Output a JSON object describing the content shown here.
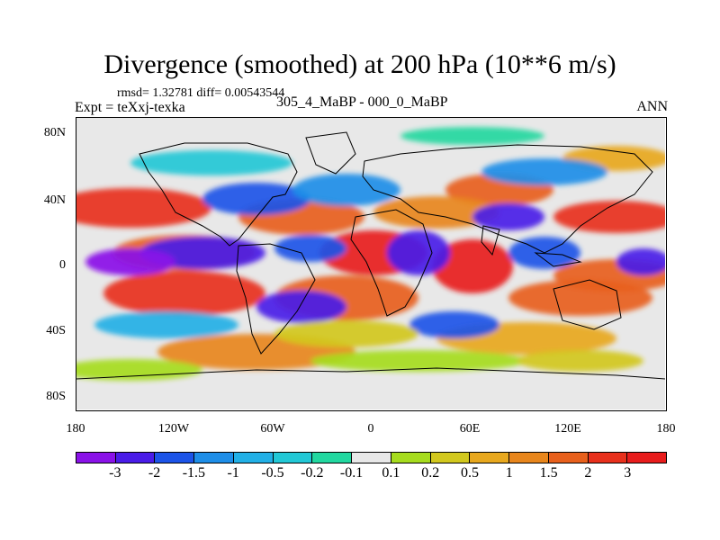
{
  "figure": {
    "title": "Divergence (smoothed) at 200 hPa (10**6 m/s)",
    "stats": "rmsd= 1.32781 diff= 0.00543544",
    "expt": "Expt = teXxj-texka",
    "subtitle": "305_4_MaBP - 000_0_MaBP",
    "season": "ANN"
  },
  "axes": {
    "y_ticks": [
      "80N",
      "40N",
      "0",
      "40S",
      "80S"
    ],
    "y_values": [
      80,
      40,
      0,
      -40,
      -80
    ],
    "x_ticks": [
      "180",
      "120W",
      "60W",
      "0",
      "60E",
      "120E",
      "180"
    ],
    "x_values": [
      -180,
      -120,
      -60,
      0,
      60,
      120,
      180
    ],
    "lat_range": [
      -90,
      90
    ],
    "lon_range": [
      -180,
      180
    ]
  },
  "colorbar": {
    "labels": [
      "-3",
      "-2",
      "-1.5",
      "-1",
      "-0.5",
      "-0.2",
      "-0.1",
      "0.1",
      "0.2",
      "0.5",
      "1",
      "1.5",
      "2",
      "3"
    ],
    "colors": [
      "#8a12e8",
      "#4a1ce8",
      "#1c54e8",
      "#1e8ee8",
      "#22b0e6",
      "#22c8d6",
      "#22d8a0",
      "#e8e8e8",
      "#a6dc1e",
      "#d2c81e",
      "#e8a81e",
      "#e8861c",
      "#e8601c",
      "#e8301c",
      "#e81c1c"
    ]
  },
  "palette": {
    "neutral": "#e8e8e8",
    "coast": "#000000"
  }
}
